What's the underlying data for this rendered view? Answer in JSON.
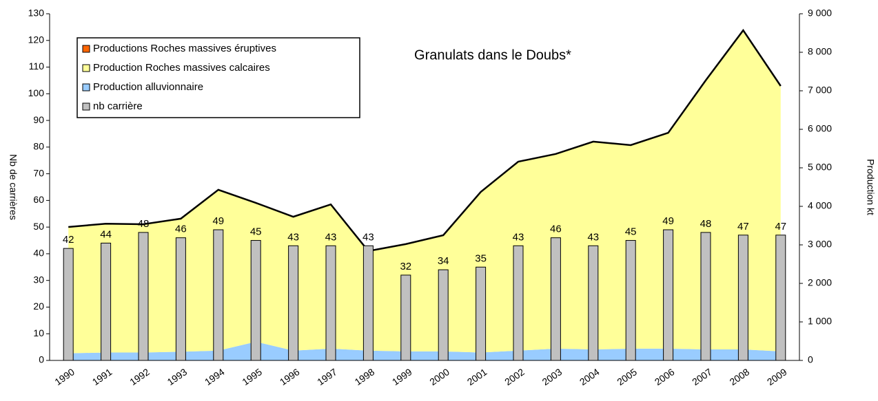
{
  "chart_data": {
    "type": "area-bar",
    "title": "Granulats dans le Doubs*",
    "y_label": "Nb de carrières",
    "y2_label": "Production kt",
    "categories": [
      "1990",
      "1991",
      "1992",
      "1993",
      "1994",
      "1995",
      "1996",
      "1997",
      "1998",
      "1999",
      "2000",
      "2001",
      "2002",
      "2003",
      "2004",
      "2005",
      "2006",
      "2007",
      "2008",
      "2009"
    ],
    "series": [
      {
        "name": "Productions Roches massives éruptives",
        "color": "#ff6600",
        "axis": "y2",
        "kind": "area",
        "values": [
          5,
          5,
          5,
          5,
          5,
          5,
          5,
          5,
          5,
          5,
          5,
          5,
          5,
          5,
          5,
          5,
          5,
          5,
          5,
          5
        ]
      },
      {
        "name": "Production alluvionnaire",
        "color": "#99ccff",
        "axis": "y2",
        "kind": "area",
        "values": [
          180,
          200,
          200,
          220,
          250,
          480,
          250,
          300,
          250,
          230,
          230,
          200,
          250,
          300,
          280,
          300,
          300,
          280,
          280,
          230
        ]
      },
      {
        "name": "Production Roches massives calcaires",
        "color": "#ffff99",
        "axis": "y2",
        "kind": "area",
        "values": [
          3279,
          3345,
          3330,
          3455,
          4175,
          3605,
          3475,
          3745,
          2585,
          2785,
          3015,
          4170,
          4905,
          5055,
          5395,
          5285,
          5605,
          6985,
          8285,
          6890
        ]
      },
      {
        "name": "nb carrière",
        "color": "#c0c0c0",
        "axis": "y",
        "kind": "bar",
        "values": [
          42,
          44,
          48,
          46,
          49,
          45,
          43,
          43,
          43,
          32,
          34,
          35,
          43,
          46,
          43,
          45,
          49,
          48,
          47,
          47
        ]
      }
    ],
    "legend_order": [
      0,
      2,
      1,
      3
    ],
    "ylim": [
      0,
      130
    ],
    "yticks": [
      0,
      10,
      20,
      30,
      40,
      50,
      60,
      70,
      80,
      90,
      100,
      110,
      120,
      130
    ],
    "y2lim": [
      0,
      9000
    ],
    "y2ticks": [
      0,
      {
        "value": 1000,
        "label": "1 000"
      },
      {
        "value": 2000,
        "label": "2 000"
      },
      {
        "value": 3000,
        "label": "3 000"
      },
      {
        "value": 4000,
        "label": "4 000"
      },
      {
        "value": 5000,
        "label": "5 000"
      },
      {
        "value": 6000,
        "label": "6 000"
      },
      {
        "value": 7000,
        "label": "7 000"
      },
      {
        "value": 8000,
        "label": "8 000"
      },
      {
        "value": 9000,
        "label": "9 000"
      }
    ]
  }
}
